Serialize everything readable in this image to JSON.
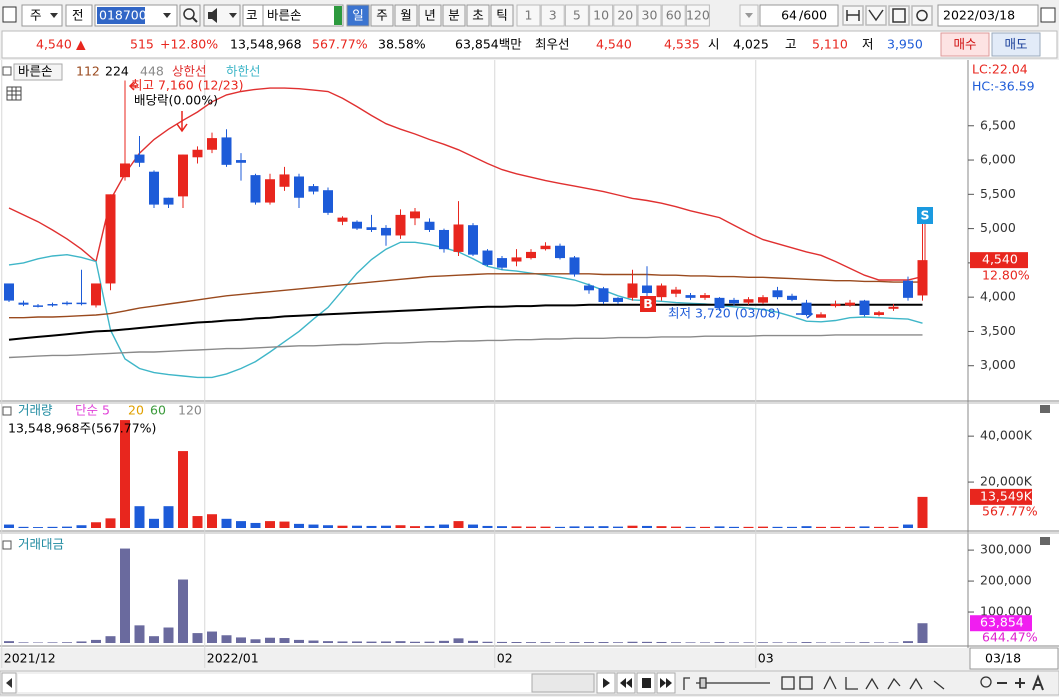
{
  "toolbar": {
    "market_type": "주",
    "mode": "전",
    "code": "018700",
    "exchange": "코",
    "name": "바른손",
    "periods": [
      "일",
      "주",
      "월",
      "년",
      "분",
      "초",
      "틱"
    ],
    "intervals": [
      "1",
      "3",
      "5",
      "10",
      "20",
      "30",
      "60",
      "120"
    ],
    "count": "64",
    "count_max": "/600",
    "date": "2022/03/18"
  },
  "quote": {
    "price": "4,540",
    "price_arrow": "▲",
    "change": "515",
    "change_rate": "+12.80%",
    "volume": "13,548,968",
    "volume_rate": "567.77%",
    "turnover": "38.58%",
    "amount": "63,854백만",
    "best_label": "최우선",
    "best_ask": "4,540",
    "best_bid": "4,535",
    "open_label": "시",
    "open": "4,025",
    "high_label": "고",
    "high": "5,110",
    "low_label": "저",
    "low": "3,950",
    "buy": "매수",
    "sell": "매도"
  },
  "x_axis": {
    "current": "03/18"
  },
  "chart_data": [
    {
      "type": "candlestick",
      "name": "바른손",
      "categories": [
        "2021/12",
        null,
        null,
        null,
        null,
        null,
        null,
        null,
        null,
        null,
        null,
        null,
        null,
        null,
        "2022/01",
        null,
        null,
        null,
        null,
        null,
        null,
        null,
        null,
        null,
        null,
        null,
        null,
        null,
        null,
        null,
        null,
        null,
        null,
        null,
        "02",
        null,
        null,
        null,
        null,
        null,
        null,
        null,
        null,
        null,
        null,
        null,
        null,
        null,
        null,
        null,
        null,
        null,
        "03",
        null,
        null,
        null,
        null,
        null,
        null,
        null,
        null,
        null,
        null,
        null
      ],
      "open": [
        4200,
        3920,
        3880,
        3900,
        3920,
        3920,
        3880,
        4200,
        5750,
        6080,
        5830,
        5450,
        5470,
        6040,
        6150,
        6330,
        6000,
        5780,
        5380,
        5610,
        5760,
        5620,
        5560,
        5100,
        5100,
        5020,
        5010,
        4900,
        5150,
        5100,
        4980,
        4660,
        5050,
        4680,
        4570,
        4520,
        4570,
        4700,
        4750,
        4580,
        4170,
        4130,
        3990,
        3990,
        4170,
        4000,
        4050,
        4030,
        3990,
        3990,
        3960,
        3920,
        3920,
        4100,
        4020,
        3920,
        3700,
        3870,
        3880,
        3950,
        3740,
        3830,
        4240,
        4025
      ],
      "high": [
        4200,
        3950,
        3900,
        3920,
        3940,
        4400,
        4200,
        5500,
        7160,
        6350,
        5850,
        5450,
        6080,
        6200,
        6400,
        6450,
        6100,
        5800,
        5800,
        5900,
        5800,
        5650,
        5600,
        5180,
        5120,
        5200,
        5050,
        5280,
        5300,
        5150,
        5000,
        5400,
        5080,
        4700,
        4600,
        4700,
        4700,
        4800,
        4780,
        4600,
        4200,
        4150,
        4000,
        4400,
        4450,
        4200,
        4150,
        4060,
        4060,
        4000,
        3990,
        4000,
        4030,
        4150,
        4050,
        3960,
        3780,
        3950,
        3960,
        3960,
        3800,
        3900,
        4300,
        5110
      ],
      "low": [
        3930,
        3870,
        3850,
        3860,
        3880,
        3880,
        3850,
        4100,
        5700,
        5900,
        5300,
        5300,
        5300,
        5950,
        6100,
        5900,
        5700,
        5350,
        5350,
        5550,
        5300,
        5500,
        5200,
        5050,
        4980,
        4950,
        4750,
        4850,
        5050,
        4950,
        4650,
        4600,
        4600,
        4450,
        4400,
        4450,
        4550,
        4680,
        4550,
        4300,
        4050,
        3900,
        3900,
        3950,
        3950,
        3950,
        4000,
        3960,
        3960,
        3800,
        3880,
        3890,
        3900,
        3970,
        3940,
        3720,
        3720,
        3850,
        3860,
        3720,
        3720,
        3800,
        3950,
        3950
      ],
      "close": [
        3950,
        3890,
        3870,
        3880,
        3900,
        3900,
        4200,
        5500,
        5950,
        5960,
        5350,
        5350,
        6080,
        6150,
        6320,
        5930,
        5960,
        5380,
        5720,
        5790,
        5450,
        5540,
        5230,
        5160,
        5000,
        4980,
        4900,
        5200,
        5250,
        4980,
        4700,
        5060,
        4620,
        4470,
        4430,
        4580,
        4660,
        4750,
        4570,
        4330,
        4100,
        3930,
        3930,
        4200,
        4060,
        4170,
        4110,
        3990,
        4030,
        3840,
        3910,
        3970,
        4000,
        4000,
        3960,
        3740,
        3750,
        3900,
        3920,
        3740,
        3780,
        3860,
        3990,
        4540
      ],
      "up_color": "#e8261e",
      "down_color": "#1d5bd8",
      "series": [
        {
          "name": "상한선",
          "color": "#e03030",
          "values": [
            5300,
            5200,
            5100,
            4980,
            4850,
            4700,
            4520,
            5420,
            5800,
            6100,
            6300,
            6450,
            6580,
            6700,
            6850,
            6950,
            7000,
            7030,
            7050,
            7050,
            7040,
            7020,
            7000,
            6900,
            6780,
            6650,
            6530,
            6450,
            6380,
            6300,
            6230,
            6150,
            6050,
            5950,
            5860,
            5800,
            5750,
            5700,
            5660,
            5620,
            5580,
            5540,
            5490,
            5440,
            5410,
            5370,
            5320,
            5260,
            5210,
            5160,
            5050,
            4940,
            4840,
            4780,
            4720,
            4660,
            4610,
            4520,
            4420,
            4320,
            4250,
            4250,
            4250,
            4300
          ]
        },
        {
          "name": "하한선",
          "color": "#3fb6c8",
          "values": [
            4470,
            4500,
            4560,
            4600,
            4620,
            4580,
            4520,
            3520,
            3100,
            2960,
            2900,
            2870,
            2850,
            2830,
            2830,
            2880,
            2960,
            3060,
            3200,
            3350,
            3500,
            3680,
            3850,
            4100,
            4350,
            4550,
            4700,
            4800,
            4800,
            4770,
            4720,
            4660,
            4560,
            4450,
            4400,
            4380,
            4350,
            4320,
            4290,
            4250,
            4180,
            4100,
            4020,
            3960,
            3950,
            3940,
            3920,
            3910,
            3900,
            3880,
            3860,
            3840,
            3820,
            3780,
            3720,
            3650,
            3640,
            3660,
            3700,
            3710,
            3700,
            3690,
            3680,
            3620
          ]
        },
        {
          "name": "112",
          "color": "#9a4a1e",
          "values": [
            3700,
            3700,
            3710,
            3710,
            3720,
            3730,
            3740,
            3760,
            3800,
            3840,
            3870,
            3900,
            3930,
            3960,
            3990,
            4020,
            4040,
            4060,
            4080,
            4100,
            4120,
            4140,
            4160,
            4180,
            4200,
            4220,
            4240,
            4260,
            4280,
            4300,
            4310,
            4320,
            4330,
            4340,
            4340,
            4340,
            4340,
            4340,
            4340,
            4340,
            4340,
            4330,
            4330,
            4330,
            4330,
            4320,
            4320,
            4310,
            4310,
            4300,
            4300,
            4290,
            4290,
            4280,
            4270,
            4260,
            4250,
            4240,
            4240,
            4230,
            4230,
            4220,
            4220,
            4220
          ]
        },
        {
          "name": "224",
          "color": "#000000",
          "values": [
            3380,
            3400,
            3420,
            3440,
            3460,
            3480,
            3500,
            3510,
            3530,
            3550,
            3570,
            3590,
            3610,
            3630,
            3640,
            3660,
            3670,
            3690,
            3700,
            3720,
            3730,
            3740,
            3750,
            3760,
            3770,
            3780,
            3790,
            3800,
            3810,
            3820,
            3830,
            3840,
            3850,
            3860,
            3860,
            3870,
            3870,
            3880,
            3880,
            3880,
            3890,
            3890,
            3890,
            3890,
            3890,
            3890,
            3890,
            3890,
            3890,
            3890,
            3890,
            3890,
            3890,
            3890,
            3890,
            3890,
            3890,
            3890,
            3890,
            3890,
            3890,
            3890,
            3890,
            3890
          ]
        },
        {
          "name": "448",
          "color": "#8a8a8a",
          "values": [
            3120,
            3130,
            3140,
            3150,
            3150,
            3160,
            3170,
            3180,
            3190,
            3200,
            3200,
            3210,
            3220,
            3230,
            3240,
            3250,
            3250,
            3260,
            3270,
            3280,
            3290,
            3290,
            3300,
            3310,
            3310,
            3320,
            3330,
            3330,
            3340,
            3350,
            3350,
            3360,
            3360,
            3370,
            3370,
            3380,
            3380,
            3390,
            3390,
            3400,
            3400,
            3400,
            3410,
            3410,
            3410,
            3420,
            3420,
            3420,
            3430,
            3430,
            3430,
            3430,
            3440,
            3440,
            3440,
            3440,
            3440,
            3450,
            3450,
            3450,
            3450,
            3450,
            3450,
            3450
          ]
        }
      ],
      "ylim": [
        2500,
        7430
      ],
      "yticks": [
        {
          "value": 3000,
          "label": "3,000"
        },
        {
          "value": 3500,
          "label": "3,500"
        },
        {
          "value": 4000,
          "label": "4,000"
        },
        {
          "value": 4500,
          "label": "4,500"
        },
        {
          "value": 5000,
          "label": "5,000"
        },
        {
          "value": 5500,
          "label": "5,500"
        },
        {
          "value": 6000,
          "label": "6,000"
        },
        {
          "value": 6500,
          "label": "6,500"
        }
      ],
      "lc": "LC:22.04",
      "hc": "HC:-36.59",
      "last_label": "4,540",
      "last_rate": "12.80%",
      "high_note": "최고 7,160 (12/23)",
      "dividend_note": "배당락(0.00%)",
      "low_note": "최저 3,720 (03/08)",
      "buy_marker": "B",
      "sell_marker": "S"
    },
    {
      "type": "bar",
      "title": "거래량",
      "ma_legend": [
        {
          "name": "단순 5",
          "color": "#e040d8"
        },
        {
          "name": "20",
          "color": "#e0a000"
        },
        {
          "name": "60",
          "color": "#3a9a3a"
        },
        {
          "name": "120",
          "color": "#888888"
        }
      ],
      "info": "13,548,968주(567.77%)",
      "values": [
        1500,
        500,
        400,
        500,
        600,
        1200,
        2500,
        4200,
        47000,
        9500,
        4000,
        9500,
        33500,
        5200,
        6000,
        4000,
        3000,
        2200,
        3000,
        2800,
        1800,
        1500,
        1200,
        1000,
        1000,
        900,
        1000,
        1200,
        800,
        900,
        1500,
        3000,
        1500,
        900,
        800,
        700,
        600,
        600,
        500,
        700,
        700,
        800,
        600,
        1000,
        900,
        800,
        600,
        500,
        500,
        700,
        500,
        500,
        600,
        500,
        500,
        800,
        500,
        500,
        500,
        700,
        500,
        500,
        1500,
        13549
      ],
      "ylim": [
        0,
        54000
      ],
      "yticks": [
        {
          "value": 20000,
          "label": "20,000K"
        },
        {
          "value": 40000,
          "label": "40,000K"
        }
      ],
      "last_label": "13,549K",
      "last_rate": "567.77%"
    },
    {
      "type": "bar",
      "title": "거래대금",
      "color": "#6a6a9e",
      "values": [
        6000,
        2000,
        1600,
        2000,
        2400,
        5000,
        10000,
        22000,
        305000,
        57000,
        22000,
        50000,
        205000,
        32000,
        37000,
        25000,
        18000,
        12000,
        17000,
        16000,
        10000,
        8000,
        6000,
        5000,
        5000,
        4500,
        5000,
        6000,
        4000,
        4300,
        7000,
        15000,
        7000,
        4000,
        3500,
        3200,
        2800,
        2800,
        2300,
        3000,
        2900,
        3100,
        2400,
        4000,
        3700,
        3300,
        2400,
        2000,
        2000,
        2700,
        2000,
        2000,
        2400,
        2000,
        2000,
        3000,
        1900,
        1900,
        1900,
        2600,
        1900,
        1900,
        6000,
        63854
      ],
      "ylim": [
        0,
        352000
      ],
      "yticks": [
        {
          "value": 100000,
          "label": "100,000"
        },
        {
          "value": 200000,
          "label": "200,000"
        },
        {
          "value": 300000,
          "label": "300,000"
        }
      ],
      "last_label": "63,854",
      "last_rate": "644.47%"
    }
  ]
}
